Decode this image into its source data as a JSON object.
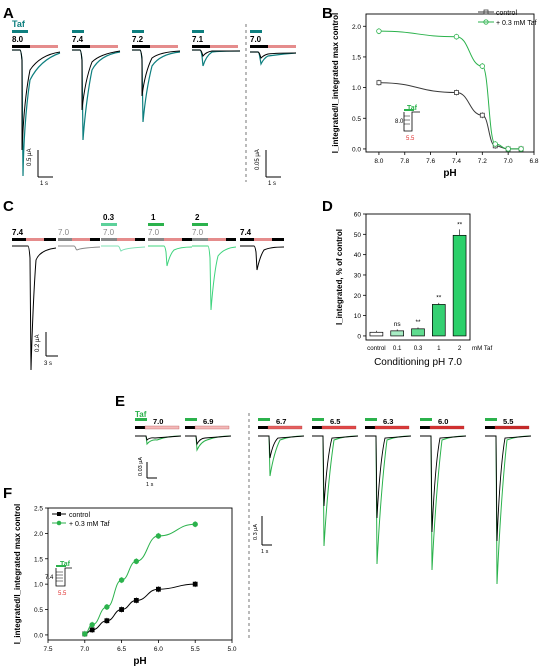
{
  "panels": {
    "A": {
      "letter": "A",
      "taf_label": "Taf",
      "ph_labels": [
        "8.0",
        "7.4",
        "7.2",
        "7.1",
        "7.0"
      ],
      "scale1": {
        "y": "0.5 μA",
        "x": "1 s"
      },
      "scale2": {
        "y": "0.05 μA",
        "x": "1 s"
      }
    },
    "B": {
      "letter": "B",
      "legend": [
        "control",
        "+ 0.3 mM Taf"
      ],
      "inset_taf": "Taf",
      "inset_from": "8.0",
      "inset_to": "5.5"
    },
    "C": {
      "letter": "C",
      "cond_labels": [
        "7.4",
        "7.0",
        "7.0",
        "7.0",
        "7.0",
        "7.4"
      ],
      "taf_conc_labels": [
        "0.3",
        "1",
        "2"
      ],
      "scale": {
        "y": "0.2 μA",
        "x": "3 s"
      }
    },
    "D": {
      "letter": "D",
      "annotations": [
        "ns",
        "**",
        "**",
        "**"
      ],
      "xlabel_extra": "mM Taf"
    },
    "E": {
      "letter": "E",
      "taf_label": "Taf",
      "ph_labels": [
        "7.0",
        "6.9",
        "6.7",
        "6.5",
        "6.3",
        "6.0",
        "5.5"
      ],
      "scale1": {
        "y": "0.03 μA",
        "x": "1 s"
      },
      "scale2": {
        "y": "0.3 μA",
        "x": "1 s"
      }
    },
    "F": {
      "letter": "F",
      "legend": [
        "control",
        "+ 0.3 mM Taf"
      ],
      "inset_taf": "Taf",
      "inset_from": "7.4",
      "inset_to": "5.5"
    }
  },
  "colors": {
    "control": "#3a3a3a",
    "taf": "#2bb24c",
    "teal": "#0e7f7f",
    "salmon": "#e58c8c",
    "black": "#000000"
  },
  "chart_data": [
    {
      "id": "B",
      "type": "scatter",
      "xlabel": "pH",
      "ylabel": "I_integrated/I_integrated max control",
      "x_reversed": true,
      "xlim": [
        6.8,
        8.1
      ],
      "ylim": [
        -0.05,
        2.2
      ],
      "xticks": [
        "8.0",
        "7.8",
        "7.6",
        "7.4",
        "7.2",
        "7.0",
        "6.8"
      ],
      "yticks": [
        "0.0",
        "0.5",
        "1.0",
        "1.5",
        "2.0"
      ],
      "series": [
        {
          "name": "control",
          "x": [
            8.0,
            7.4,
            7.2,
            7.1,
            7.0,
            6.9
          ],
          "y": [
            1.08,
            0.92,
            0.55,
            0.05,
            0.0,
            0.0
          ]
        },
        {
          "name": "+ 0.3 mM Taf",
          "x": [
            8.0,
            7.4,
            7.2,
            7.1,
            7.0,
            6.9
          ],
          "y": [
            1.92,
            1.83,
            1.35,
            0.08,
            0.0,
            0.0
          ]
        }
      ]
    },
    {
      "id": "D",
      "type": "bar",
      "title": "Conditioning pH 7.0",
      "ylabel": "I_integrated, % of control",
      "categories": [
        "control",
        "0.1",
        "0.3",
        "1",
        "2"
      ],
      "values": [
        1.8,
        2.5,
        3.5,
        15.5,
        49.5
      ],
      "ylim": [
        -2,
        60
      ],
      "yticks": [
        "0",
        "10",
        "20",
        "30",
        "40",
        "50",
        "60"
      ]
    },
    {
      "id": "F",
      "type": "scatter",
      "xlabel": "pH",
      "ylabel": "I_integrated/I_integrated max control",
      "x_reversed": true,
      "xlim": [
        5.0,
        7.5
      ],
      "ylim": [
        -0.1,
        2.5
      ],
      "xticks": [
        "7.5",
        "7.0",
        "6.5",
        "6.0",
        "5.5",
        "5.0"
      ],
      "yticks": [
        "0.0",
        "0.5",
        "1.0",
        "1.5",
        "2.0",
        "2.5"
      ],
      "series": [
        {
          "name": "control",
          "x": [
            7.0,
            6.9,
            6.7,
            6.5,
            6.3,
            6.0,
            5.5
          ],
          "y": [
            0.02,
            0.1,
            0.28,
            0.5,
            0.68,
            0.9,
            1.0
          ]
        },
        {
          "name": "+ 0.3 mM Taf",
          "x": [
            7.0,
            6.9,
            6.7,
            6.5,
            6.3,
            6.0,
            5.5
          ],
          "y": [
            0.02,
            0.2,
            0.55,
            1.08,
            1.45,
            1.95,
            2.18
          ]
        }
      ]
    }
  ]
}
